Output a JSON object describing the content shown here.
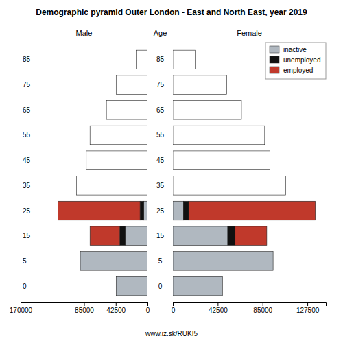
{
  "chart_data": [
    {
      "type": "bar",
      "title": "Demographic pyramid Outer London - East and North East, year 2019",
      "subtitle": "Male",
      "y_label": "Age",
      "annotations": [
        "www.iz.sk/RUKI5"
      ],
      "orientation": "horizontal",
      "stacked": true,
      "categories": [
        "0",
        "5",
        "15",
        "25",
        "35",
        "45",
        "55",
        "65",
        "75",
        "85"
      ],
      "series": [
        {
          "colors": [
            "#b0b8c0",
            "#b0b8c0",
            "#b0b8c0",
            "#b0b8c0",
            "#ffffff",
            "#ffffff",
            "#ffffff",
            "#ffffff",
            "#ffffff",
            "#ffffff"
          ],
          "values": [
            42000,
            90000,
            30000,
            5000,
            95000,
            82000,
            77000,
            55000,
            42000,
            15000
          ]
        },
        {
          "color": "#111111",
          "values": [
            0,
            0,
            7000,
            5000,
            0,
            0,
            0,
            0,
            0,
            0
          ]
        },
        {
          "color": "#c0392b",
          "values": [
            0,
            0,
            40000,
            110000,
            0,
            0,
            0,
            0,
            0,
            0
          ]
        }
      ],
      "xlim": [
        170000,
        0
      ],
      "xticks": [
        170000,
        85000,
        42500,
        0
      ]
    },
    {
      "type": "bar",
      "subtitle": "Female",
      "orientation": "horizontal",
      "stacked": true,
      "categories": [
        "0",
        "5",
        "15",
        "25",
        "35",
        "45",
        "55",
        "65",
        "75",
        "85"
      ],
      "series": [
        {
          "name": "inactive",
          "color": "#b0b8c0",
          "colors": [
            "#b0b8c0",
            "#b0b8c0",
            "#b0b8c0",
            "#b0b8c0",
            "#ffffff",
            "#ffffff",
            "#ffffff",
            "#ffffff",
            "#ffffff",
            "#ffffff"
          ],
          "values": [
            47000,
            95000,
            52000,
            10000,
            107000,
            92000,
            87000,
            65000,
            51000,
            21000
          ]
        },
        {
          "name": "unemployed",
          "color": "#111111",
          "values": [
            0,
            0,
            7000,
            5000,
            0,
            0,
            0,
            0,
            0,
            0
          ]
        },
        {
          "name": "employed",
          "color": "#c0392b",
          "values": [
            0,
            0,
            30000,
            120000,
            0,
            0,
            0,
            0,
            0,
            0
          ]
        }
      ],
      "xlim": [
        0,
        145000
      ],
      "xticks": [
        0,
        42500,
        85000,
        127500
      ],
      "legend": "upper right"
    }
  ]
}
